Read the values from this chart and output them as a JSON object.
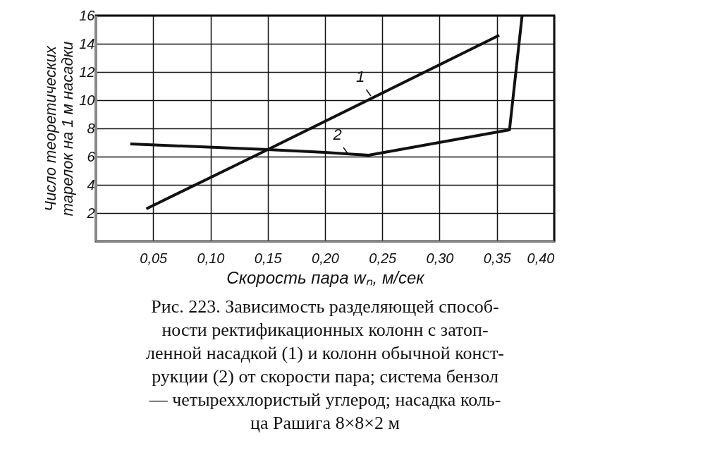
{
  "chart_data": {
    "type": "line",
    "xlabel": "Скорость пара wₙ, м/сек",
    "ylabel": "Число теоретических\nтарелок на 1 м насадки",
    "series": [
      {
        "color": "#111111",
        "x": [
          0.044,
          0.15,
          0.352
        ],
        "values": [
          2.3,
          6.5,
          14.6
        ]
      },
      {
        "color": "#111111",
        "x": [
          0.03,
          0.15,
          0.2,
          0.238,
          0.361,
          0.372
        ],
        "values": [
          6.9,
          6.5,
          6.3,
          6.1,
          7.9,
          16
        ]
      }
    ],
    "xlim": [
      0,
      0.4
    ],
    "xticks": [
      {
        "value": 0.05,
        "label": "0,05"
      },
      {
        "value": 0.1,
        "label": "0,10"
      },
      {
        "value": 0.15,
        "label": "0,15"
      },
      {
        "value": 0.2,
        "label": "0,20"
      },
      {
        "value": 0.25,
        "label": "0,25"
      },
      {
        "value": 0.3,
        "label": "0,30"
      },
      {
        "value": 0.35,
        "label": "0,35"
      },
      {
        "value": 0.4,
        "label": "0,40"
      }
    ],
    "ylim": [
      0,
      16
    ],
    "yticks": [
      2,
      4,
      6,
      8,
      10,
      12,
      14,
      16
    ],
    "grid": true,
    "marker": "none",
    "line_style": "solid",
    "annotations": [
      {
        "text": "1",
        "x": 0.24,
        "y": 10.3
      },
      {
        "text": "2",
        "x": 0.22,
        "y": 6.2
      },
      "Рис. 223. Зависимость разделяющей способ-\nности ректификационных колонн с затоп-\nленной насадкой (1) и колонн обычной конст-\nрукции (2) от скорости пара; система бензол\n— четыреххлористый углерод; насадка коль-\nца Рашига 8×8×2 м"
    ]
  }
}
